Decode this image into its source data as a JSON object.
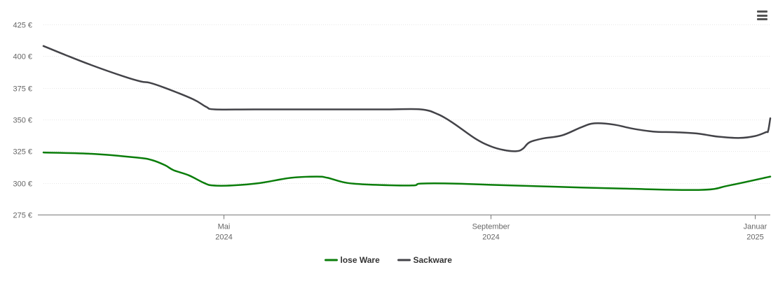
{
  "chart_data": {
    "type": "line",
    "ylim": [
      275,
      425
    ],
    "y_ticks": [
      {
        "value": 275,
        "label": "275 €"
      },
      {
        "value": 300,
        "label": "300 €"
      },
      {
        "value": 325,
        "label": "325 €"
      },
      {
        "value": 350,
        "label": "350 €"
      },
      {
        "value": 375,
        "label": "375 €"
      },
      {
        "value": 400,
        "label": "400 €"
      },
      {
        "value": 425,
        "label": "425 €"
      }
    ],
    "xlim": [
      "2024-02-08",
      "2025-01-08"
    ],
    "x_ticks": [
      {
        "date": "2024-05-01",
        "line1": "Mai",
        "line2": "2024"
      },
      {
        "date": "2024-09-01",
        "line1": "September",
        "line2": "2024"
      },
      {
        "date": "2025-01-01",
        "line1": "Januar",
        "line2": "2025"
      }
    ],
    "grid": "horizontal",
    "legend_position": "bottom-center",
    "series": [
      {
        "name": "lose Ware",
        "color": "#0a7d0a",
        "points": [
          [
            "2024-02-08",
            324
          ],
          [
            "2024-03-01",
            323
          ],
          [
            "2024-03-22",
            320
          ],
          [
            "2024-03-29",
            318
          ],
          [
            "2024-04-04",
            314
          ],
          [
            "2024-04-08",
            310
          ],
          [
            "2024-04-15",
            306
          ],
          [
            "2024-04-22",
            300
          ],
          [
            "2024-04-26",
            298
          ],
          [
            "2024-05-05",
            298
          ],
          [
            "2024-05-18",
            300
          ],
          [
            "2024-06-01",
            304
          ],
          [
            "2024-06-13",
            305
          ],
          [
            "2024-06-18",
            304
          ],
          [
            "2024-06-27",
            300
          ],
          [
            "2024-07-10",
            298.5
          ],
          [
            "2024-07-27",
            298
          ],
          [
            "2024-07-31",
            299.5
          ],
          [
            "2024-08-15",
            299.5
          ],
          [
            "2024-09-01",
            298.5
          ],
          [
            "2024-10-01",
            297
          ],
          [
            "2024-11-01",
            295.5
          ],
          [
            "2024-12-07",
            294.5
          ],
          [
            "2024-12-20",
            298
          ],
          [
            "2025-01-08",
            305
          ]
        ]
      },
      {
        "name": "Sackware",
        "color": "#434348",
        "points": [
          [
            "2024-02-08",
            408
          ],
          [
            "2024-02-18",
            401
          ],
          [
            "2024-03-01",
            393
          ],
          [
            "2024-03-16",
            384
          ],
          [
            "2024-03-24",
            380
          ],
          [
            "2024-03-28",
            379
          ],
          [
            "2024-04-04",
            375
          ],
          [
            "2024-04-17",
            366
          ],
          [
            "2024-04-23",
            360
          ],
          [
            "2024-04-27",
            358
          ],
          [
            "2024-05-15",
            358
          ],
          [
            "2024-06-15",
            358
          ],
          [
            "2024-07-15",
            358
          ],
          [
            "2024-07-31",
            358
          ],
          [
            "2024-08-08",
            354
          ],
          [
            "2024-08-15",
            347
          ],
          [
            "2024-08-25",
            335
          ],
          [
            "2024-09-01",
            329
          ],
          [
            "2024-09-07",
            326
          ],
          [
            "2024-09-13",
            325
          ],
          [
            "2024-09-16",
            327
          ],
          [
            "2024-09-19",
            332
          ],
          [
            "2024-09-25",
            335
          ],
          [
            "2024-10-04",
            337.5
          ],
          [
            "2024-10-13",
            344
          ],
          [
            "2024-10-19",
            347
          ],
          [
            "2024-10-28",
            346
          ],
          [
            "2024-11-05",
            343
          ],
          [
            "2024-11-15",
            340.5
          ],
          [
            "2024-11-25",
            340
          ],
          [
            "2024-12-05",
            339
          ],
          [
            "2024-12-15",
            336.5
          ],
          [
            "2024-12-25",
            335.5
          ],
          [
            "2025-01-01",
            337
          ],
          [
            "2025-01-06",
            340
          ],
          [
            "2025-01-07",
            341
          ],
          [
            "2025-01-08",
            351
          ]
        ]
      }
    ]
  },
  "menu": {
    "icon": "hamburger-menu-icon"
  }
}
